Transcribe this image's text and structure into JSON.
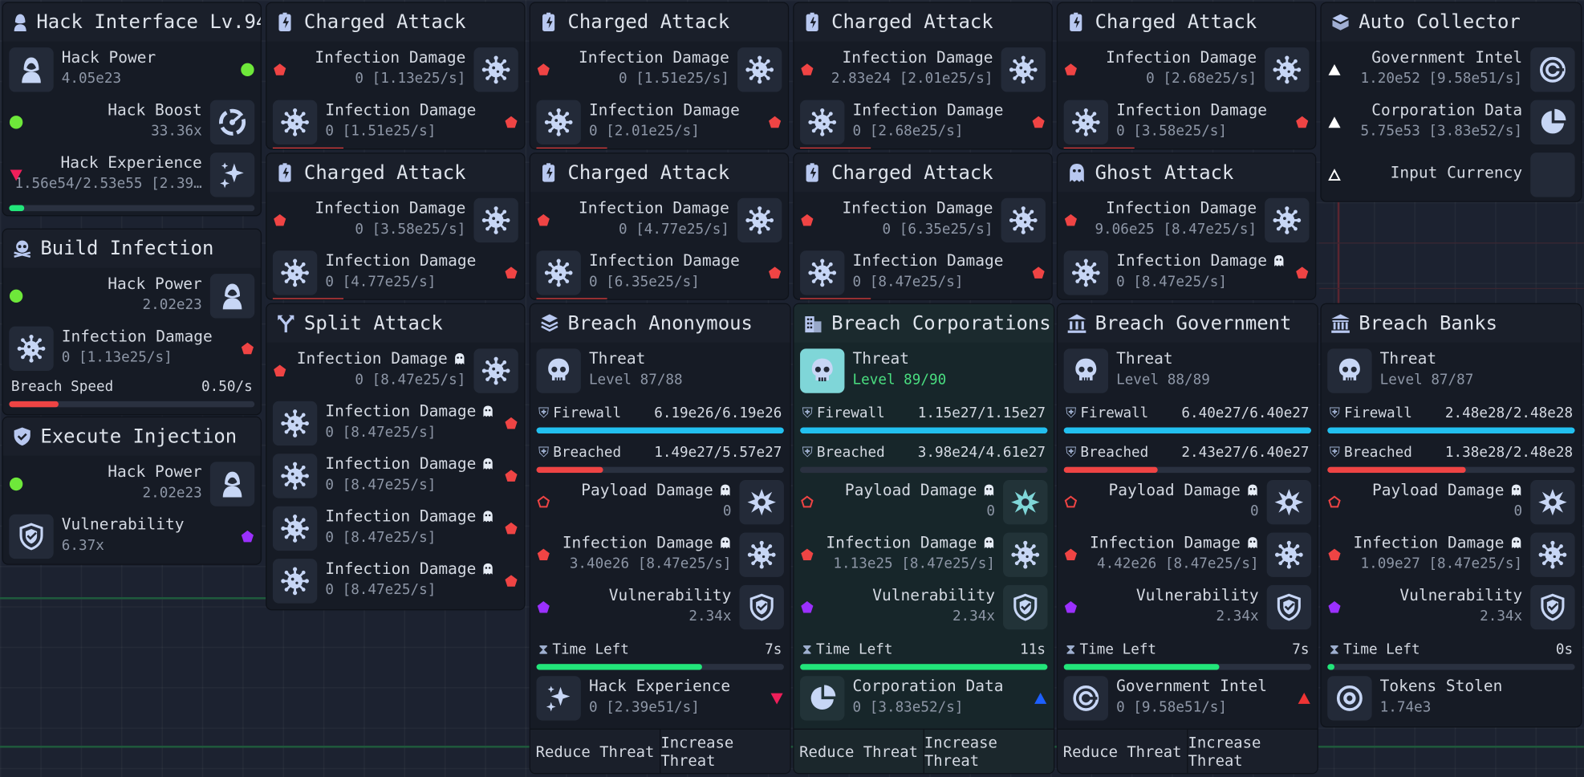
{
  "hack_interface": {
    "title": "Hack Interface Lv.94",
    "rows": [
      {
        "label": "Hack Power",
        "value": "4.05e23"
      },
      {
        "label": "Hack Boost",
        "value": "33.36x"
      },
      {
        "label": "Hack Experience",
        "value": "1.56e54/2.53e55 [2.39…"
      }
    ],
    "exp_progress": 0.06
  },
  "build_infection": {
    "title": "Build Infection",
    "rows": [
      {
        "label": "Hack Power",
        "value": "2.02e23"
      },
      {
        "label": "Infection Damage",
        "value": "0 [1.13e25/s]"
      }
    ],
    "speed_label": "Breach Speed",
    "speed_value": "0.50/s",
    "speed_progress": 0.2
  },
  "execute_injection": {
    "title": "Execute Injection",
    "rows": [
      {
        "label": "Hack Power",
        "value": "2.02e23"
      },
      {
        "label": "Vulnerability",
        "value": "6.37x"
      }
    ]
  },
  "charged": [
    {
      "title": "Charged Attack",
      "in_label": "Infection Damage",
      "in_value": "0 [1.13e25/s]",
      "out_label": "Infection Damage",
      "out_value": "0 [1.51e25/s]"
    },
    {
      "title": "Charged Attack",
      "in_label": "Infection Damage",
      "in_value": "0 [1.51e25/s]",
      "out_label": "Infection Damage",
      "out_value": "0 [2.01e25/s]"
    },
    {
      "title": "Charged Attack",
      "in_label": "Infection Damage",
      "in_value": "2.83e24 [2.01e25/s]",
      "out_label": "Infection Damage",
      "out_value": "0 [2.68e25/s]"
    },
    {
      "title": "Charged Attack",
      "in_label": "Infection Damage",
      "in_value": "0 [2.68e25/s]",
      "out_label": "Infection Damage",
      "out_value": "0 [3.58e25/s]"
    },
    {
      "title": "Charged Attack",
      "in_label": "Infection Damage",
      "in_value": "0 [3.58e25/s]",
      "out_label": "Infection Damage",
      "out_value": "0 [4.77e25/s]"
    },
    {
      "title": "Charged Attack",
      "in_label": "Infection Damage",
      "in_value": "0 [4.77e25/s]",
      "out_label": "Infection Damage",
      "out_value": "0 [6.35e25/s]"
    },
    {
      "title": "Charged Attack",
      "in_label": "Infection Damage",
      "in_value": "0 [6.35e25/s]",
      "out_label": "Infection Damage",
      "out_value": "0 [8.47e25/s]"
    }
  ],
  "ghost_attack": {
    "title": "Ghost Attack",
    "in_label": "Infection Damage",
    "in_value": "9.06e25 [8.47e25/s]",
    "out_label": "Infection Damage",
    "out_value": "0 [8.47e25/s]"
  },
  "split_attack": {
    "title": "Split Attack",
    "in_label": "Infection Damage",
    "in_value": "0 [8.47e25/s]",
    "outputs": [
      {
        "label": "Infection Damage",
        "value": "0 [8.47e25/s]"
      },
      {
        "label": "Infection Damage",
        "value": "0 [8.47e25/s]"
      },
      {
        "label": "Infection Damage",
        "value": "0 [8.47e25/s]"
      },
      {
        "label": "Infection Damage",
        "value": "0 [8.47e25/s]"
      }
    ]
  },
  "auto_collector": {
    "title": "Auto Collector",
    "rows": [
      {
        "label": "Government Intel",
        "value": "1.20e52 [9.58e51/s]"
      },
      {
        "label": "Corporation Data",
        "value": "5.75e53 [3.83e52/s]"
      },
      {
        "label": "Input Currency",
        "value": ""
      }
    ]
  },
  "breaches": [
    {
      "title": "Breach Anonymous",
      "threat_label": "Threat",
      "level": "Level 87/88",
      "firewall_label": "Firewall",
      "firewall": "6.19e26/6.19e26",
      "firewall_progress": 1.0,
      "breached_label": "Breached",
      "breached": "1.49e27/5.57e27",
      "breached_progress": 0.27,
      "payload_label": "Payload Damage",
      "payload": "0",
      "infection_label": "Infection Damage",
      "infection": "3.40e26 [8.47e25/s]",
      "vuln_label": "Vulnerability",
      "vuln": "2.34x",
      "time_label": "Time Left",
      "time": "7s",
      "time_progress": 0.67,
      "reward_label": "Hack Experience",
      "reward": "0 [2.39e51/s]",
      "reduce": "Reduce Threat",
      "increase": "Increase Threat",
      "highlight": false,
      "reward_icon": "sparkle-icon"
    },
    {
      "title": "Breach Corporations",
      "threat_label": "Threat",
      "level": "Level 89/90",
      "firewall_label": "Firewall",
      "firewall": "1.15e27/1.15e27",
      "firewall_progress": 1.0,
      "breached_label": "Breached",
      "breached": "3.98e24/4.61e27",
      "breached_progress": 0.0,
      "payload_label": "Payload Damage",
      "payload": "0",
      "infection_label": "Infection Damage",
      "infection": "1.13e25 [8.47e25/s]",
      "vuln_label": "Vulnerability",
      "vuln": "2.34x",
      "time_label": "Time Left",
      "time": "11s",
      "time_progress": 1.0,
      "reward_label": "Corporation Data",
      "reward": "0 [3.83e52/s]",
      "reduce": "Reduce Threat",
      "increase": "Increase Threat",
      "highlight": true,
      "reward_icon": "pie-chart-icon"
    },
    {
      "title": "Breach Government",
      "threat_label": "Threat",
      "level": "Level 88/89",
      "firewall_label": "Firewall",
      "firewall": "6.40e27/6.40e27",
      "firewall_progress": 1.0,
      "breached_label": "Breached",
      "breached": "2.43e27/6.40e27",
      "breached_progress": 0.38,
      "payload_label": "Payload Damage",
      "payload": "0",
      "infection_label": "Infection Damage",
      "infection": "4.42e26 [8.47e25/s]",
      "vuln_label": "Vulnerability",
      "vuln": "2.34x",
      "time_label": "Time Left",
      "time": "7s",
      "time_progress": 0.63,
      "reward_label": "Government Intel",
      "reward": "0 [9.58e51/s]",
      "reduce": "Reduce Threat",
      "increase": "Increase Threat",
      "highlight": false,
      "reward_icon": "intel-icon"
    },
    {
      "title": "Breach Banks",
      "threat_label": "Threat",
      "level": "Level 87/87",
      "firewall_label": "Firewall",
      "firewall": "2.48e28/2.48e28",
      "firewall_progress": 1.0,
      "breached_label": "Breached",
      "breached": "1.38e28/2.48e28",
      "breached_progress": 0.56,
      "payload_label": "Payload Damage",
      "payload": "0",
      "infection_label": "Infection Damage",
      "infection": "1.09e27 [8.47e25/s]",
      "vuln_label": "Vulnerability",
      "vuln": "2.34x",
      "time_label": "Time Left",
      "time": "0s",
      "time_progress": 0.03,
      "reward_label": "Tokens Stolen",
      "reward": "1.74e3",
      "reduce": "",
      "increase": "",
      "highlight": false,
      "reward_icon": "token-icon"
    }
  ],
  "colors": {
    "accent": "#22c0f0",
    "danger": "#ef4444",
    "success": "#22e67a",
    "purple": "#9b30ff",
    "panel": "#161b25",
    "background": "#1c2230"
  }
}
